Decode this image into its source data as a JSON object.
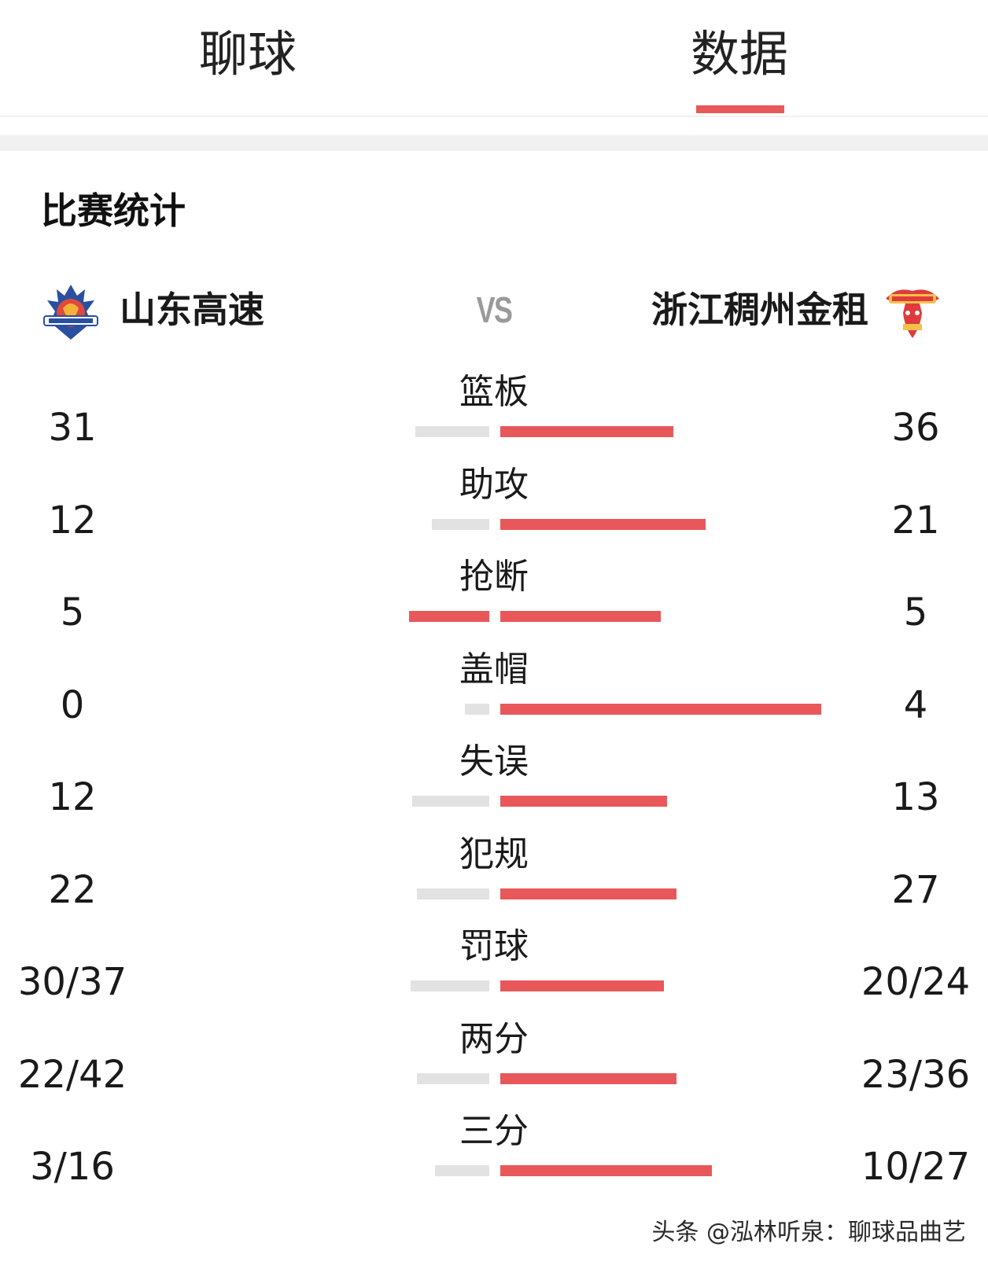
{
  "tabs": {
    "chat_label": "聊球",
    "data_label": "数据",
    "active": "data",
    "accent_color": "#e8585a"
  },
  "section": {
    "title": "比赛统计"
  },
  "teams": {
    "home": {
      "name": "山东高速",
      "logo": "shandong-dragon-logo"
    },
    "vs": "VS",
    "away": {
      "name": "浙江稠州金租",
      "logo": "golden-bulls-logo"
    }
  },
  "colors": {
    "leader_bar": "#e8585a",
    "trailer_bar": "#e2e2e2"
  },
  "stats": [
    {
      "label": "篮板",
      "home": "31",
      "away": "36",
      "home_fill": 0.46,
      "away_fill": 0.54,
      "home_lead": false,
      "away_lead": true
    },
    {
      "label": "助攻",
      "home": "12",
      "away": "21",
      "home_fill": 0.36,
      "away_fill": 0.64,
      "home_lead": false,
      "away_lead": true
    },
    {
      "label": "抢断",
      "home": "5",
      "away": "5",
      "home_fill": 0.5,
      "away_fill": 0.5,
      "home_lead": true,
      "away_lead": true
    },
    {
      "label": "盖帽",
      "home": "0",
      "away": "4",
      "home_fill": 0.15,
      "away_fill": 1.0,
      "home_lead": false,
      "away_lead": true
    },
    {
      "label": "失误",
      "home": "12",
      "away": "13",
      "home_fill": 0.48,
      "away_fill": 0.52,
      "home_lead": false,
      "away_lead": true
    },
    {
      "label": "犯规",
      "home": "22",
      "away": "27",
      "home_fill": 0.45,
      "away_fill": 0.55,
      "home_lead": false,
      "away_lead": true
    },
    {
      "label": "罚球",
      "home": "30/37",
      "away": "20/24",
      "home_fill": 0.49,
      "away_fill": 0.51,
      "home_lead": false,
      "away_lead": true
    },
    {
      "label": "两分",
      "home": "22/42",
      "away": "23/36",
      "home_fill": 0.45,
      "away_fill": 0.55,
      "home_lead": false,
      "away_lead": true
    },
    {
      "label": "三分",
      "home": "3/16",
      "away": "10/27",
      "home_fill": 0.34,
      "away_fill": 0.66,
      "home_lead": false,
      "away_lead": true
    }
  ],
  "watermark": "头条 @泓林听泉：聊球品曲艺"
}
